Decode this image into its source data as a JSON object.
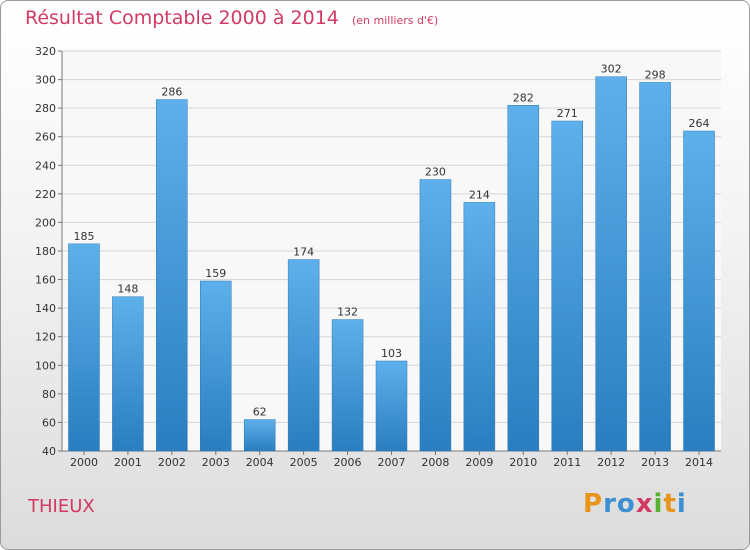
{
  "title": "Résultat Comptable 2000 à 2014",
  "unit_note": "(en milliers d'€)",
  "commune": "THIEUX",
  "logo": {
    "text": "Proxiti",
    "colors": [
      "#e8941a",
      "#3c8fd0",
      "#3c8fd0",
      "#d23a64",
      "#58b030",
      "#e8941a",
      "#3c8fd0"
    ]
  },
  "colors": {
    "title": "#d23a64",
    "bar_light": "#5eb0ea",
    "bar_dark": "#2a7ec0"
  },
  "chart_data": {
    "type": "bar",
    "categories": [
      "2000",
      "2001",
      "2002",
      "2003",
      "2004",
      "2005",
      "2006",
      "2007",
      "2008",
      "2009",
      "2010",
      "2011",
      "2012",
      "2013",
      "2014"
    ],
    "values": [
      185,
      148,
      286,
      159,
      62,
      174,
      132,
      103,
      230,
      214,
      282,
      271,
      302,
      298,
      264
    ],
    "ylim": [
      40,
      320
    ],
    "yticks": [
      40,
      60,
      80,
      100,
      120,
      140,
      160,
      180,
      200,
      220,
      240,
      260,
      280,
      300,
      320
    ],
    "grid": true,
    "legend": "none"
  }
}
